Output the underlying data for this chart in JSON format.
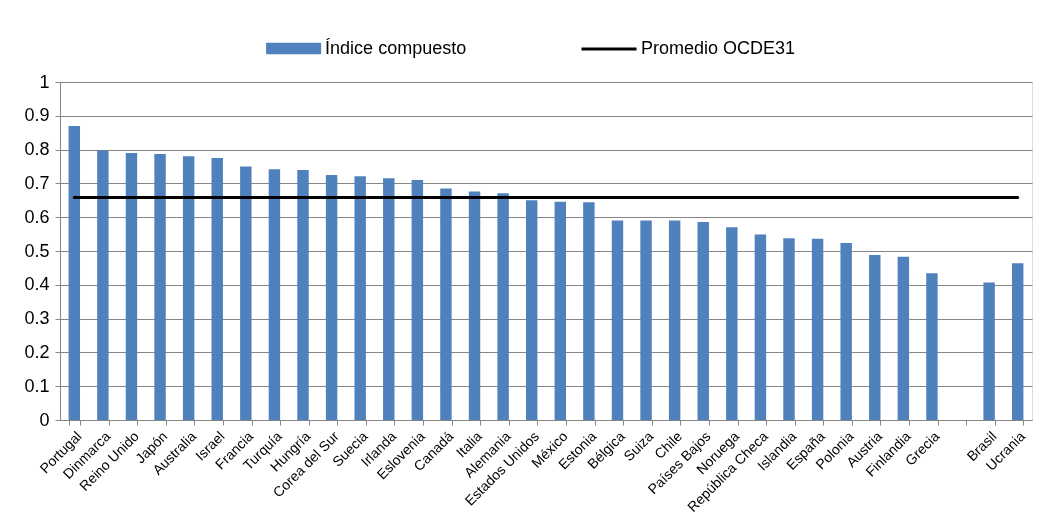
{
  "chart_data": {
    "type": "bar",
    "categories": [
      "Portugal",
      "Dinmarca",
      "Reino Unido",
      "Japón",
      "Australia",
      "Israel",
      "Francia",
      "Turquía",
      "Hungría",
      "Corea del Sur",
      "Suecia",
      "Irlanda",
      "Eslovenia",
      "Canadá",
      "Italia",
      "Alemania",
      "Estados Unidos",
      "México",
      "Estonia",
      "Bélgica",
      "Suiza",
      "Chile",
      "Países Bajos",
      "Noruega",
      "República Checa",
      "Islandia",
      "España",
      "Polonia",
      "Austria",
      "Finlandia",
      "Grecia",
      null,
      "Brasil",
      "Ucrania"
    ],
    "series": [
      {
        "name": "Índice compuesto",
        "color": "#4f81bd",
        "values": [
          0.87,
          0.797,
          0.79,
          0.787,
          0.78,
          0.775,
          0.75,
          0.742,
          0.74,
          0.725,
          0.721,
          0.715,
          0.71,
          0.685,
          0.676,
          0.671,
          0.65,
          0.646,
          0.644,
          0.59,
          0.59,
          0.59,
          0.586,
          0.57,
          0.549,
          0.538,
          0.536,
          0.524,
          0.488,
          0.483,
          0.434,
          null,
          0.407,
          0.464
        ]
      },
      {
        "name": "Promedio OCDE31",
        "type": "line",
        "color": "#000000",
        "line_style": "solid",
        "values": [
          0.658,
          0.658,
          0.658,
          0.658,
          0.658,
          0.658,
          0.658,
          0.658,
          0.658,
          0.658,
          0.658,
          0.658,
          0.658,
          0.658,
          0.658,
          0.658,
          0.658,
          0.658,
          0.658,
          0.658,
          0.658,
          0.658,
          0.658,
          0.658,
          0.658,
          0.658,
          0.658,
          0.658,
          0.658,
          0.658,
          0.658,
          0.658,
          0.658,
          0.658
        ]
      }
    ],
    "ylim": [
      0,
      1
    ],
    "yticks": [
      0,
      0.1,
      0.2,
      0.3,
      0.4,
      0.5,
      0.6,
      0.7,
      0.8,
      0.9,
      1
    ],
    "grid": "y",
    "legend": "top"
  }
}
